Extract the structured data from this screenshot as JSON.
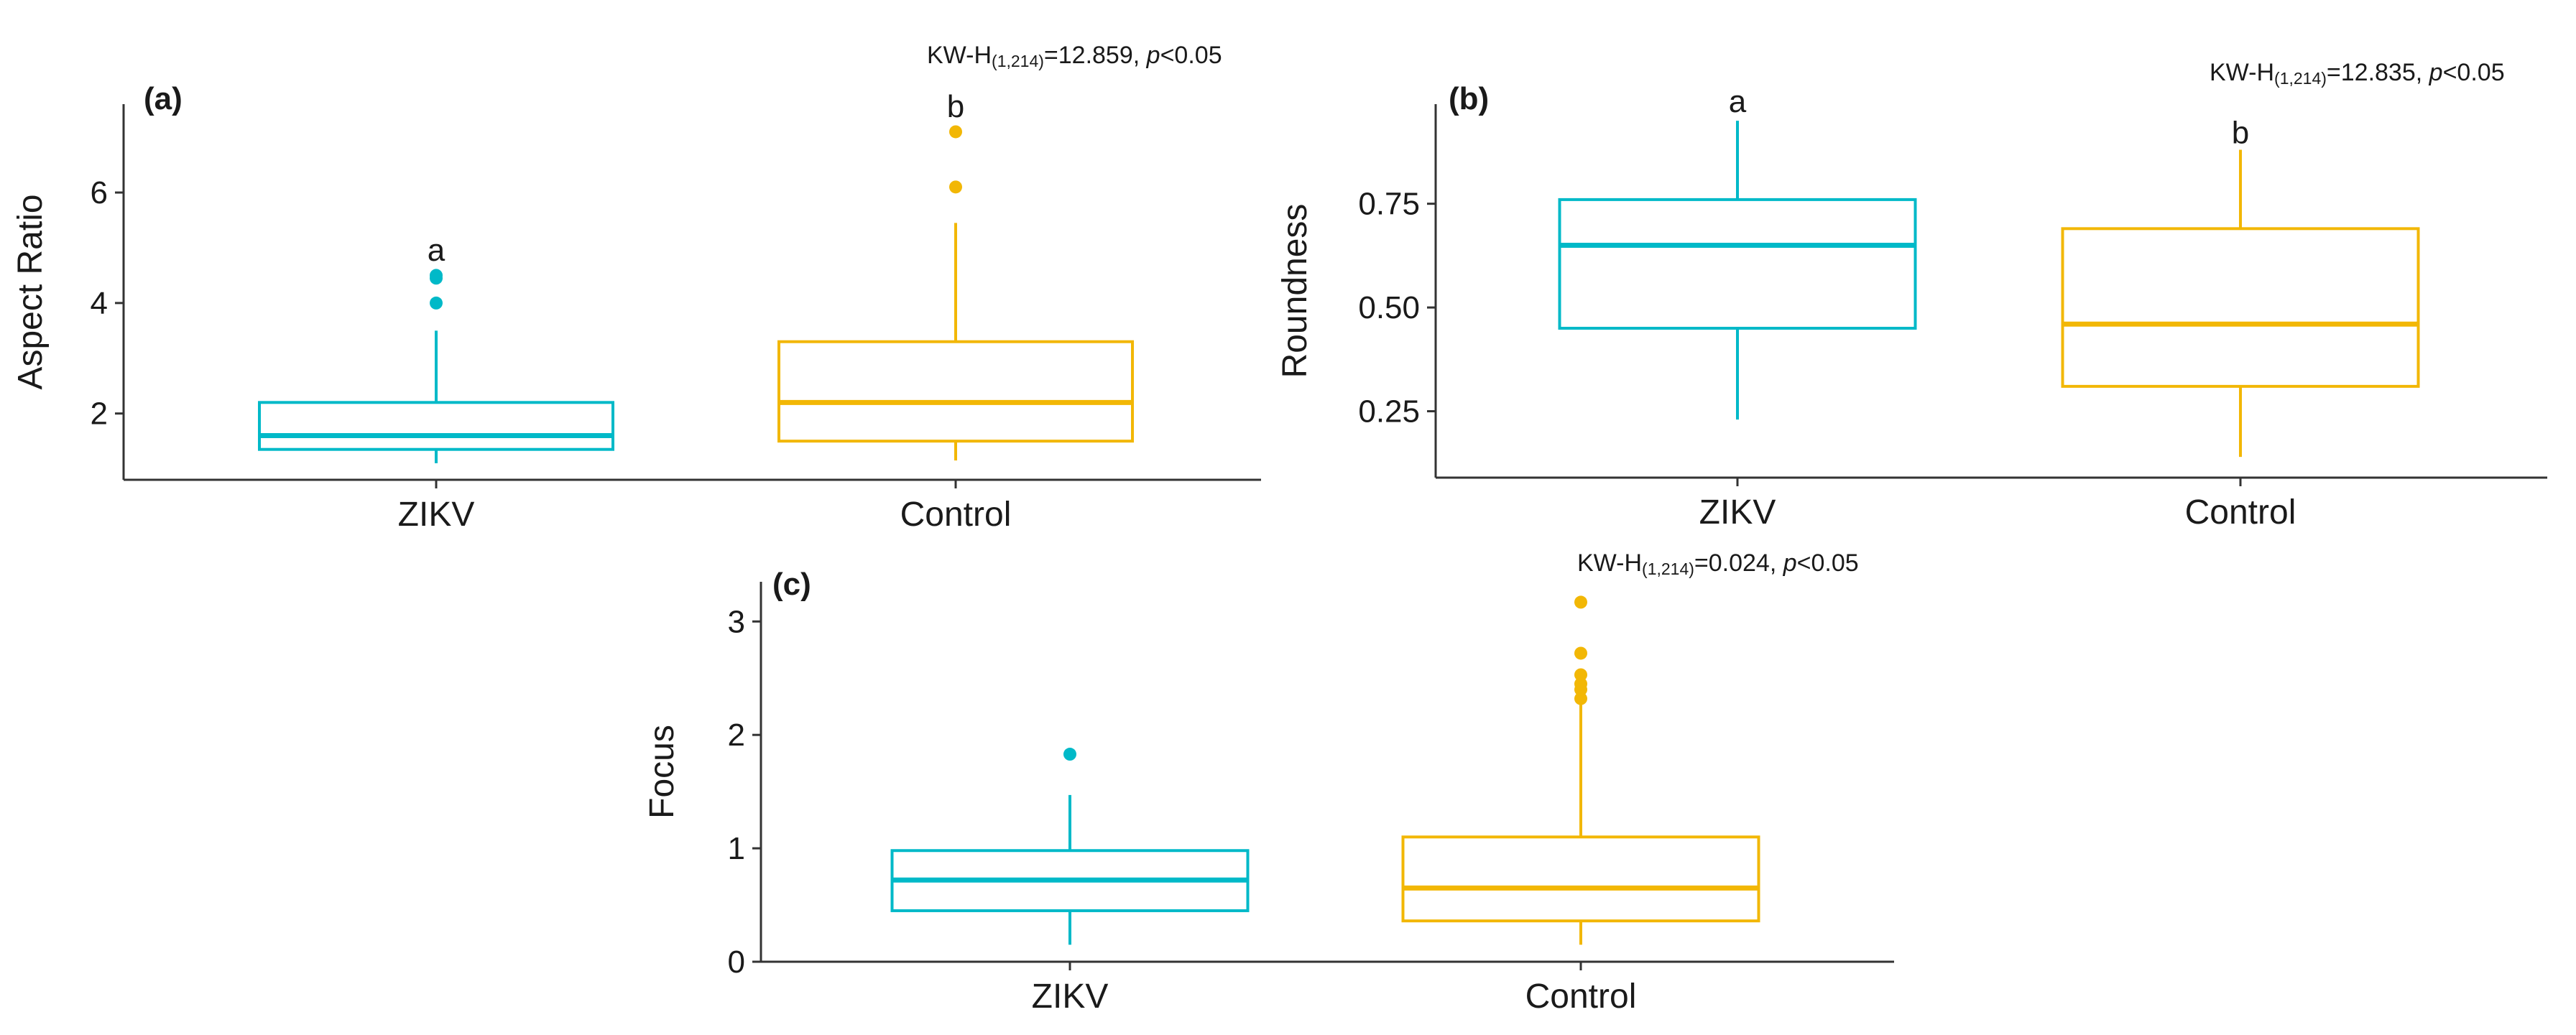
{
  "figure": {
    "colors": {
      "zikv": "#00B9C8",
      "control": "#F2B705",
      "axis": "#333333",
      "text": "#1a1a1a"
    }
  },
  "chart_data": [
    {
      "type": "box",
      "panel_label": "(a)",
      "ylabel": "Aspect Ratio",
      "xlabel": "",
      "categories": [
        "ZIKV",
        "Control"
      ],
      "ylim": [
        0.8,
        7.6
      ],
      "yticks": [
        2,
        4,
        6
      ],
      "stat_label": {
        "prefix": "KW-H",
        "subscript": "(1,214)",
        "value": "=12.859, ",
        "p_italic": "p",
        "p_rest": "<0.05"
      },
      "series": [
        {
          "name": "ZIKV",
          "color": "#00B9C8",
          "min": 1.1,
          "q1": 1.35,
          "median": 1.6,
          "q3": 2.2,
          "max": 3.5,
          "outliers": [
            4.0,
            4.45,
            4.5
          ],
          "letter": "a",
          "letter_y": 4.95
        },
        {
          "name": "Control",
          "color": "#F2B705",
          "min": 1.15,
          "q1": 1.5,
          "median": 2.2,
          "q3": 3.3,
          "max": 5.45,
          "outliers": [
            6.1,
            7.1
          ],
          "letter": "b",
          "letter_y": 7.55
        }
      ]
    },
    {
      "type": "box",
      "panel_label": "(b)",
      "ylabel": "Roundness",
      "xlabel": "",
      "categories": [
        "ZIKV",
        "Control"
      ],
      "ylim": [
        0.09,
        0.99
      ],
      "yticks": [
        0.25,
        0.5,
        0.75
      ],
      "ytick_labels": [
        "0.25",
        "0.50",
        "0.75"
      ],
      "stat_label": {
        "prefix": "KW-H",
        "subscript": "(1,214)",
        "value": "=12.835, ",
        "p_italic": "p",
        "p_rest": "<0.05"
      },
      "series": [
        {
          "name": "ZIKV",
          "color": "#00B9C8",
          "min": 0.23,
          "q1": 0.45,
          "median": 0.65,
          "q3": 0.76,
          "max": 0.95,
          "outliers": [],
          "letter": "a",
          "letter_y": 0.995
        },
        {
          "name": "Control",
          "color": "#F2B705",
          "min": 0.14,
          "q1": 0.31,
          "median": 0.46,
          "q3": 0.69,
          "max": 0.88,
          "outliers": [],
          "letter": "b",
          "letter_y": 0.92
        }
      ]
    },
    {
      "type": "box",
      "panel_label": "(c)",
      "ylabel": "Focus",
      "xlabel": "",
      "categories": [
        "ZIKV",
        "Control"
      ],
      "ylim": [
        0,
        3.35
      ],
      "yticks": [
        0,
        1,
        2,
        3
      ],
      "stat_label": {
        "prefix": "KW-H",
        "subscript": "(1,214)",
        "value": "=0.024, ",
        "p_italic": "p",
        "p_rest": "<0.05"
      },
      "series": [
        {
          "name": "ZIKV",
          "color": "#00B9C8",
          "min": 0.15,
          "q1": 0.45,
          "median": 0.72,
          "q3": 0.98,
          "max": 1.47,
          "outliers": [
            1.83
          ],
          "letter": "",
          "letter_y": null
        },
        {
          "name": "Control",
          "color": "#F2B705",
          "min": 0.15,
          "q1": 0.36,
          "median": 0.65,
          "q3": 1.1,
          "max": 2.28,
          "outliers": [
            2.32,
            2.4,
            2.45,
            2.53,
            2.72,
            3.17
          ],
          "letter": "",
          "letter_y": null
        }
      ]
    }
  ]
}
